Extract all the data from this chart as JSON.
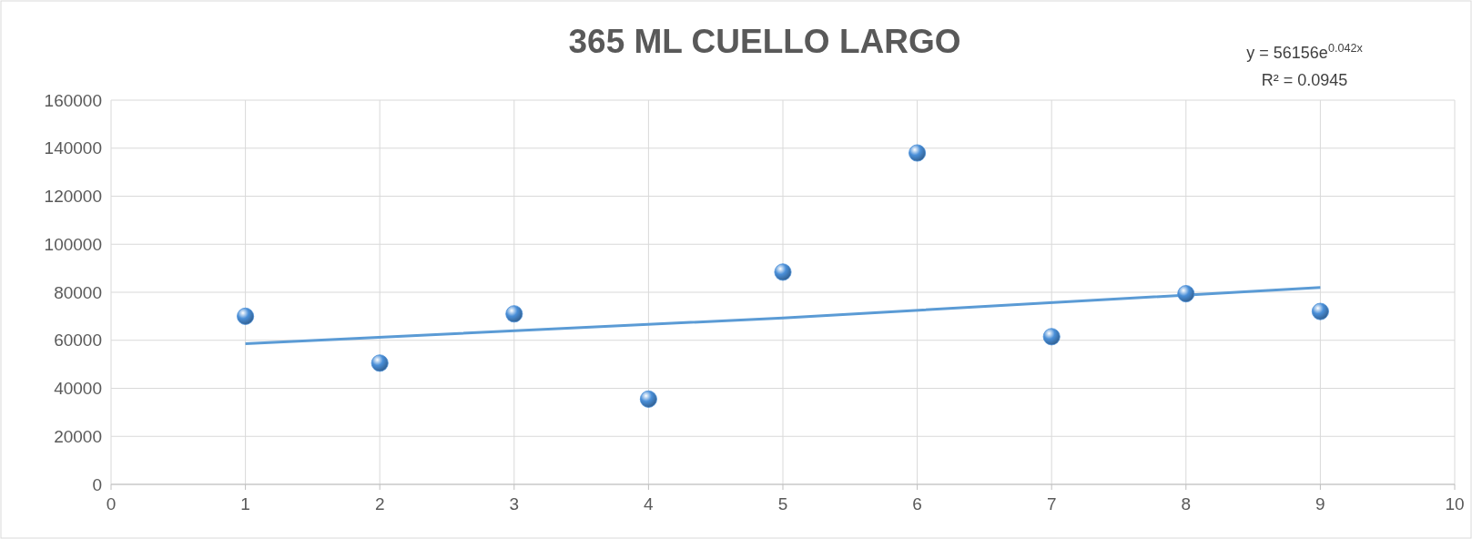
{
  "chart_data": {
    "type": "scatter",
    "title": "365 ML CUELLO LARGO",
    "xlim": [
      0,
      10
    ],
    "xticks": [
      0,
      1,
      2,
      3,
      4,
      5,
      6,
      7,
      8,
      9,
      10
    ],
    "ylim": [
      0,
      160000
    ],
    "yticks": [
      0,
      20000,
      40000,
      60000,
      80000,
      100000,
      120000,
      140000,
      160000
    ],
    "grid": true,
    "annotations": [
      "y = 56156e$^{0.042x}$",
      "R² = 0.0945"
    ],
    "series": [
      {
        "marker": "circle",
        "color": "#4a8fd8",
        "x": [
          1,
          2,
          3,
          4,
          5,
          6,
          7,
          8,
          9
        ],
        "values": [
          70000,
          50500,
          71000,
          35500,
          88400,
          138000,
          61500,
          79400,
          72000
        ]
      },
      {
        "type": "line",
        "color": "#5b9bd5",
        "x": [
          1,
          5,
          9
        ],
        "values": [
          58600,
          69300,
          82000
        ]
      }
    ]
  }
}
